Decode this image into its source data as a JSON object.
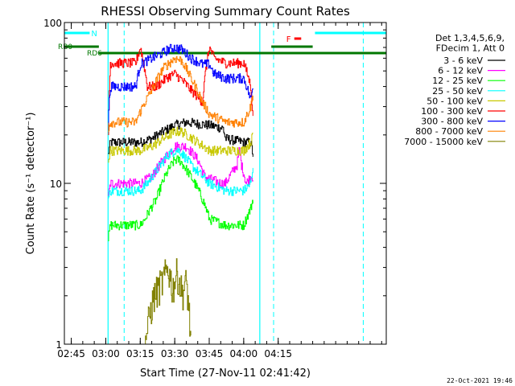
{
  "chart_data": {
    "type": "line",
    "title": "RHESSI Observing Summary Count Rates",
    "xlabel": "Start Time (27-Nov-11 02:41:42)",
    "ylabel": "Count Rate (s⁻¹ detector⁻¹)",
    "yscale": "log",
    "ylim": [
      1,
      100
    ],
    "y_ticks": [
      1,
      10,
      100
    ],
    "y_tick_labels": [
      "1",
      "10",
      "100"
    ],
    "xlim_minutes": [
      -3,
      137
    ],
    "x_ticks": [
      0,
      15,
      30,
      45,
      60,
      75,
      90
    ],
    "x_tick_labels": [
      "02:45",
      "03:00",
      "03:15",
      "03:30",
      "03:45",
      "04:00",
      "04:15"
    ],
    "legend_header": [
      "Det 1,3,4,5,6,9,",
      "FDecim 1, Att 0"
    ],
    "legend_placement": "right",
    "series": [
      {
        "name": "3 - 6 keV",
        "color": "#000000",
        "x": [
          16,
          17,
          30,
          35,
          45,
          50,
          60,
          66,
          67,
          75,
          78,
          79
        ],
        "y": [
          15,
          18,
          18,
          19,
          23,
          24,
          23,
          22,
          19,
          18,
          18,
          15
        ]
      },
      {
        "name": "6 - 12 keV",
        "color": "#ff00ff",
        "x": [
          16,
          17,
          30,
          35,
          40,
          45,
          50,
          55,
          58,
          65,
          67,
          72,
          73,
          74,
          76,
          78,
          79
        ],
        "y": [
          8,
          10,
          10,
          11,
          14,
          17,
          17,
          14,
          11,
          10,
          10,
          13,
          16,
          13,
          10,
          11,
          11
        ]
      },
      {
        "name": "12 - 25 keV",
        "color": "#00ff00",
        "x": [
          16,
          17,
          30,
          32,
          37,
          42,
          45,
          47,
          52,
          57,
          60,
          67,
          75,
          78,
          79
        ],
        "y": [
          4.5,
          5.5,
          5.5,
          6,
          8,
          12,
          14,
          14,
          11,
          8,
          6,
          5.5,
          5.5,
          7,
          8
        ]
      },
      {
        "name": "25 - 50 keV",
        "color": "#00ffff",
        "x": [
          16,
          17,
          30,
          33,
          37,
          42,
          45,
          47,
          52,
          57,
          60,
          67,
          75,
          78,
          79
        ],
        "y": [
          8,
          9,
          9,
          10,
          12,
          15,
          16,
          16,
          13,
          11,
          10,
          9,
          9,
          10,
          12
        ]
      },
      {
        "name": "50 - 100 keV",
        "color": "#c8c800",
        "x": [
          16,
          17,
          30,
          35,
          40,
          45,
          48,
          55,
          60,
          67,
          75,
          78,
          79
        ],
        "y": [
          14,
          16,
          16,
          17,
          19,
          21,
          21,
          18,
          16,
          16,
          16,
          18,
          20
        ]
      },
      {
        "name": "100 - 300 keV",
        "color": "#ff0000",
        "x": [
          16,
          17,
          28,
          30,
          33,
          37,
          42,
          45,
          48,
          52,
          57,
          60,
          62,
          67,
          75,
          78,
          79
        ],
        "y": [
          20,
          56,
          56,
          70,
          40,
          40,
          46,
          48,
          44,
          38,
          32,
          70,
          60,
          56,
          56,
          40,
          25
        ]
      },
      {
        "name": "300 - 800 keV",
        "color": "#0000ff",
        "x": [
          16,
          17,
          28,
          30,
          35,
          40,
          42,
          45,
          48,
          52,
          57,
          60,
          62,
          67,
          75,
          78,
          79
        ],
        "y": [
          25,
          40,
          40,
          55,
          60,
          65,
          68,
          70,
          68,
          60,
          55,
          55,
          48,
          45,
          45,
          33,
          40
        ]
      },
      {
        "name": "800 - 7000 keV",
        "color": "#ff8000",
        "x": [
          16,
          17,
          28,
          30,
          35,
          40,
          45,
          48,
          52,
          57,
          60,
          67,
          75,
          78,
          79
        ],
        "y": [
          22,
          24,
          24,
          28,
          38,
          52,
          60,
          58,
          45,
          32,
          27,
          24,
          24,
          30,
          35
        ]
      },
      {
        "name": "7000 - 15000 keV",
        "color": "#808000",
        "x": [
          32,
          36,
          40,
          42,
          44,
          46,
          48,
          50,
          52
        ],
        "y": [
          1,
          2,
          2.5,
          3,
          2.2,
          2.8,
          2.1,
          2.4,
          1
        ]
      }
    ],
    "annotations": {
      "night_label": "N",
      "flare_label": "F",
      "rb0_label": "RB0",
      "rd6_label": "RD6",
      "night_color": "#00ffff",
      "flare_color": "#ff0000",
      "rb_color": "#007700",
      "night_intervals": [
        [
          -3,
          8
        ],
        [
          106,
          137
        ]
      ],
      "flare_intervals": [
        [
          97,
          100
        ]
      ],
      "rb0_intervals": [
        [
          -3,
          12
        ],
        [
          87,
          105
        ]
      ],
      "rd6_intervals": [
        [
          12,
          137
        ]
      ],
      "night_edges_solid": [
        16,
        82
      ],
      "night_edges_dashed": [
        23,
        88,
        127
      ]
    },
    "grid": false
  },
  "footer": {
    "timestamp": "22-Oct-2021 19:46"
  }
}
